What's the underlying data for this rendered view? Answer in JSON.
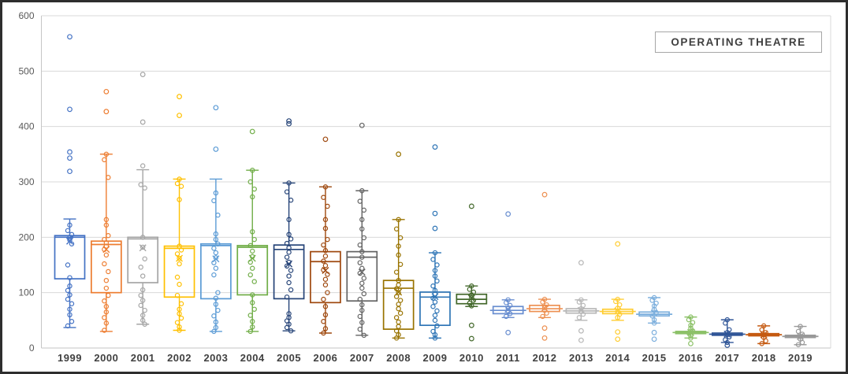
{
  "legend": {
    "label": "OPERATING THEATRE"
  },
  "chart_data": {
    "type": "boxplot",
    "title": "OPERATING THEATRE",
    "xlabel": "",
    "ylabel": "",
    "ylim": [
      0,
      600
    ],
    "y_ticks": [
      0,
      100,
      200,
      300,
      400,
      500,
      600
    ],
    "grid": true,
    "legend_position": "top-right",
    "categories": [
      "1999",
      "2000",
      "2001",
      "2002",
      "2003",
      "2004",
      "2005",
      "2006",
      "2007",
      "2008",
      "2009",
      "2010",
      "2011",
      "2012",
      "2013",
      "2014",
      "2015",
      "2016",
      "2017",
      "2018",
      "2019"
    ],
    "series": [
      {
        "year": "1999",
        "color": "#4472C4",
        "box": {
          "low": 37,
          "q1": 125,
          "median": 200,
          "q3": 203,
          "high": 233,
          "mean": 193
        },
        "outliers": [
          562,
          431,
          354,
          343,
          319
        ],
        "points": [
          222,
          212,
          205,
          200,
          195,
          188,
          150,
          127,
          112,
          104,
          96,
          88,
          80,
          70,
          60,
          48,
          40
        ]
      },
      {
        "year": "2000",
        "color": "#ED7D31",
        "box": {
          "low": 30,
          "q1": 100,
          "median": 187,
          "q3": 193,
          "high": 350,
          "mean": 178
        },
        "outliers": [
          463,
          427
        ],
        "points": [
          350,
          340,
          308,
          232,
          222,
          203,
          196,
          190,
          184,
          178,
          168,
          152,
          138,
          122,
          108,
          95,
          85,
          75,
          65,
          55,
          45,
          32
        ]
      },
      {
        "year": "2001",
        "color": "#A5A5A5",
        "box": {
          "low": 43,
          "q1": 118,
          "median": 197,
          "q3": 200,
          "high": 322,
          "mean": 181
        },
        "outliers": [
          494,
          408
        ],
        "points": [
          329,
          295,
          289,
          200,
          182,
          161,
          146,
          130,
          105,
          95,
          86,
          77,
          68,
          59,
          50,
          43
        ]
      },
      {
        "year": "2002",
        "color": "#FFC000",
        "box": {
          "low": 32,
          "q1": 92,
          "median": 180,
          "q3": 184,
          "high": 305,
          "mean": 162
        },
        "outliers": [
          454,
          420
        ],
        "points": [
          305,
          297,
          292,
          268,
          184,
          177,
          170,
          162,
          152,
          128,
          115,
          95,
          80,
          70,
          62,
          54,
          46,
          38,
          32
        ]
      },
      {
        "year": "2003",
        "color": "#5B9BD5",
        "box": {
          "low": 30,
          "q1": 89,
          "median": 185,
          "q3": 188,
          "high": 305,
          "mean": 161
        },
        "outliers": [
          434,
          359
        ],
        "points": [
          280,
          266,
          240,
          206,
          196,
          188,
          180,
          172,
          163,
          154,
          144,
          132,
          100,
          90,
          79,
          68,
          58,
          47,
          37,
          30
        ]
      },
      {
        "year": "2004",
        "color": "#70AD47",
        "box": {
          "low": 30,
          "q1": 96,
          "median": 182,
          "q3": 185,
          "high": 321,
          "mean": 162
        },
        "outliers": [
          391
        ],
        "points": [
          321,
          300,
          287,
          273,
          210,
          196,
          185,
          175,
          165,
          155,
          144,
          132,
          120,
          96,
          82,
          70,
          59,
          48,
          38,
          30
        ]
      },
      {
        "year": "2005",
        "color": "#264478",
        "box": {
          "low": 31,
          "q1": 89,
          "median": 178,
          "q3": 186,
          "high": 298,
          "mean": 152
        },
        "outliers": [
          410,
          405
        ],
        "points": [
          298,
          282,
          267,
          232,
          205,
          197,
          189,
          181,
          173,
          164,
          155,
          148,
          140,
          130,
          118,
          105,
          92,
          62,
          55,
          49,
          43,
          37,
          31
        ]
      },
      {
        "year": "2006",
        "color": "#9E480E",
        "box": {
          "low": 27,
          "q1": 82,
          "median": 156,
          "q3": 174,
          "high": 291,
          "mean": 140
        },
        "outliers": [
          377
        ],
        "points": [
          291,
          272,
          256,
          232,
          216,
          196,
          186,
          176,
          166,
          157,
          149,
          141,
          133,
          124,
          114,
          100,
          88,
          75,
          60,
          48,
          35,
          27
        ]
      },
      {
        "year": "2007",
        "color": "#636363",
        "box": {
          "low": 23,
          "q1": 85,
          "median": 164,
          "q3": 174,
          "high": 284,
          "mean": 137
        },
        "outliers": [
          402
        ],
        "points": [
          284,
          265,
          249,
          232,
          215,
          199,
          186,
          174,
          164,
          154,
          144,
          135,
          126,
          117,
          108,
          98,
          88,
          78,
          68,
          57,
          46,
          34,
          23
        ]
      },
      {
        "year": "2008",
        "color": "#997300",
        "box": {
          "low": 18,
          "q1": 34,
          "median": 108,
          "q3": 122,
          "high": 232,
          "mean": 101
        },
        "outliers": [
          350
        ],
        "points": [
          232,
          215,
          199,
          184,
          168,
          151,
          137,
          122,
          114,
          107,
          100,
          93,
          86,
          79,
          71,
          63,
          55,
          47,
          39,
          31,
          24,
          18
        ]
      },
      {
        "year": "2009",
        "color": "#2E75B6",
        "box": {
          "low": 18,
          "q1": 41,
          "median": 92,
          "q3": 101,
          "high": 172,
          "mean": 93
        },
        "outliers": [
          363,
          243,
          216
        ],
        "points": [
          172,
          160,
          150,
          140,
          130,
          121,
          112,
          104,
          97,
          90,
          83,
          75,
          67,
          59,
          50,
          40,
          30,
          24,
          18
        ]
      },
      {
        "year": "2010",
        "color": "#43682B",
        "box": {
          "low": 75,
          "q1": 80,
          "median": 88,
          "q3": 97,
          "high": 112,
          "mean": 90
        },
        "outliers": [
          256,
          41,
          17
        ],
        "points": [
          112,
          106,
          101,
          96,
          91,
          86,
          81,
          76
        ]
      },
      {
        "year": "2011",
        "color": "#698ED0",
        "box": {
          "low": 55,
          "q1": 62,
          "median": 68,
          "q3": 75,
          "high": 87,
          "mean": 70
        },
        "outliers": [
          242,
          28
        ],
        "points": [
          87,
          82,
          77,
          72,
          67,
          62,
          57
        ]
      },
      {
        "year": "2012",
        "color": "#ED9153",
        "box": {
          "low": 55,
          "q1": 66,
          "median": 71,
          "q3": 77,
          "high": 88,
          "mean": 72
        },
        "outliers": [
          277,
          36,
          18
        ],
        "points": [
          88,
          83,
          78,
          73,
          68,
          63,
          57
        ]
      },
      {
        "year": "2013",
        "color": "#B7B7B7",
        "box": {
          "low": 50,
          "q1": 63,
          "median": 67,
          "q3": 71,
          "high": 87,
          "mean": 68
        },
        "outliers": [
          154,
          31,
          14
        ],
        "points": [
          87,
          83,
          77,
          71,
          66,
          61,
          55
        ]
      },
      {
        "year": "2014",
        "color": "#FFCD33",
        "box": {
          "low": 50,
          "q1": 62,
          "median": 66,
          "q3": 70,
          "high": 88,
          "mean": 67
        },
        "outliers": [
          188,
          55,
          29,
          16
        ],
        "points": [
          88,
          84,
          78,
          72,
          66,
          61
        ]
      },
      {
        "year": "2015",
        "color": "#7CAFDD",
        "box": {
          "low": 45,
          "q1": 58,
          "median": 61,
          "q3": 65,
          "high": 91,
          "mean": 63
        },
        "outliers": [
          28,
          16
        ],
        "points": [
          91,
          86,
          81,
          76,
          70,
          64,
          58,
          51,
          45
        ]
      },
      {
        "year": "2016",
        "color": "#8CC168",
        "box": {
          "low": 18,
          "q1": 26,
          "median": 28,
          "q3": 30,
          "high": 56,
          "mean": 28
        },
        "outliers": [
          8
        ],
        "points": [
          56,
          51,
          46,
          41,
          36,
          31,
          27,
          22,
          18
        ]
      },
      {
        "year": "2017",
        "color": "#2F5597",
        "box": {
          "low": 10,
          "q1": 23,
          "median": 25,
          "q3": 27,
          "high": 51,
          "mean": 25
        },
        "outliers": [
          5
        ],
        "points": [
          51,
          45,
          33,
          28,
          24,
          20,
          15,
          10
        ]
      },
      {
        "year": "2018",
        "color": "#C55A11",
        "box": {
          "low": 8,
          "q1": 22,
          "median": 24,
          "q3": 26,
          "high": 40,
          "mean": 24
        },
        "outliers": [],
        "points": [
          40,
          33,
          28,
          24,
          19,
          13,
          8
        ]
      },
      {
        "year": "2019",
        "color": "#999999",
        "box": {
          "low": 6,
          "q1": 19,
          "median": 21,
          "q3": 23,
          "high": 39,
          "mean": 21
        },
        "outliers": [],
        "points": [
          39,
          30,
          25,
          21,
          16,
          10,
          6
        ]
      }
    ]
  }
}
